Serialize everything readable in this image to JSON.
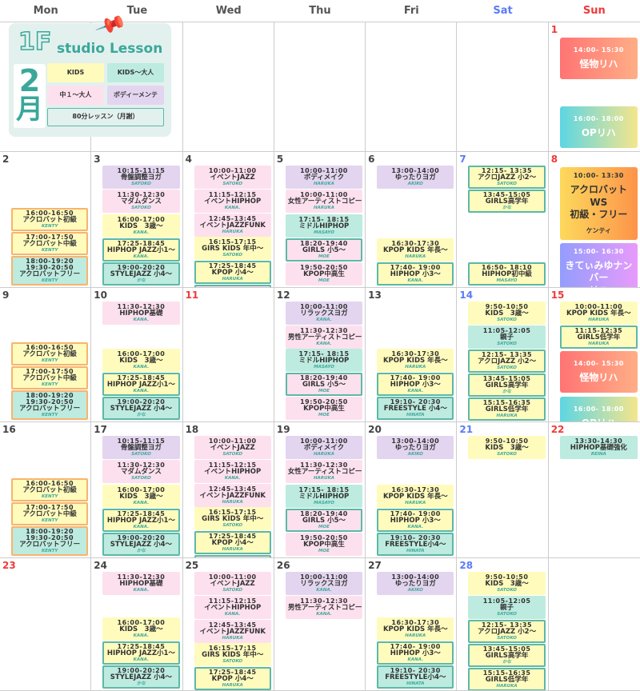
{
  "weekdays": [
    "Mon",
    "Tue",
    "Wed",
    "Thu",
    "Fri",
    "Sat",
    "Sun"
  ],
  "legend": {
    "floor": "1F",
    "title": "studio Lesson",
    "month_num": "2",
    "month_kanji": "月",
    "items": [
      {
        "label": "KIDS",
        "color": "#fffbbc"
      },
      {
        "label": "KIDS〜大人",
        "color": "#bdebdf"
      },
      {
        "label": "中１〜大人",
        "color": "#fde0ee"
      },
      {
        "label": "ボディーメンテ",
        "color": "#e3d5ef"
      }
    ],
    "note": "80分レッスン（月謝）"
  },
  "colors": {
    "kids": "#fffbbc",
    "kids_adult": "#bdebdf",
    "teen_adult": "#fde0ee",
    "body": "#e3d5ef",
    "border": "#5cb8a8",
    "saturday": "#5b7cf5",
    "sunday": "#f03a3a"
  },
  "weeks": [
    [
      {
        "d": ""
      },
      {
        "d": ""
      },
      {
        "d": ""
      },
      {
        "d": ""
      },
      {
        "d": ""
      },
      {
        "d": ""
      },
      {
        "d": "1",
        "red": true,
        "events": [
          {
            "t": "14:00- 15:30",
            "n": "怪物リハ",
            "g": "linear-gradient(90deg,#ff7474,#ffae86)"
          },
          {
            "t": "16:00- 18:00",
            "n": "OPリハ",
            "g": "linear-gradient(90deg,#5dd6e3,#f5e58c)"
          }
        ]
      }
    ],
    [
      {
        "d": "2",
        "events": [
          {
            "t": "16:00-16:50",
            "n": "アクロバット初級",
            "by": "KENTY",
            "c": "y",
            "b": "orange"
          },
          {
            "t": "17:00-17:50",
            "n": "アクロバット中級",
            "by": "KENTY",
            "c": "y",
            "b": "orange"
          },
          {
            "t": "18:00-19:20\n19:30-20:50",
            "n": "アクロバットフリー",
            "by": "KENTY",
            "c": "m",
            "b": "orange"
          }
        ]
      },
      {
        "d": "3",
        "events": [
          {
            "t": "10:15-11:15",
            "n": "骨盤調整ヨガ",
            "by": "SATOKO",
            "c": "v"
          },
          {
            "t": "11:30-12:30",
            "n": "マダムダンス",
            "by": "SATOKO",
            "c": "p"
          },
          {
            "t": "16:00-17:00",
            "n": "KIDS　3歳〜",
            "by": "KANA.",
            "c": "y"
          },
          {
            "t": "17:25-18:45",
            "n": "HIPHOP JAZZ小1〜",
            "by": "KANA.",
            "c": "y",
            "b": "teal"
          },
          {
            "t": "19:00-20:20",
            "n": "STYLEJAZZ 小4〜",
            "by": "かな",
            "c": "m",
            "b": "teal"
          }
        ]
      },
      {
        "d": "4",
        "events": [
          {
            "t": "10:00-11:00",
            "n": "イベントJAZZ",
            "by": "SATOKO",
            "c": "p"
          },
          {
            "t": "11:15-12:15",
            "n": "イベントHIPHOP",
            "by": "KANA.",
            "c": "p"
          },
          {
            "t": "12:45-13:45",
            "n": "イベントJAZZFUNK",
            "by": "HARUKA",
            "c": "p"
          },
          {
            "t": "16:15-17:15",
            "n": "GIRS KIDS 年中〜",
            "by": "SATOKO",
            "c": "y"
          },
          {
            "t": "17:25-18:45",
            "n": "KPOP 小4〜",
            "by": "HARUKA",
            "c": "y",
            "b": "teal"
          },
          {
            "t": "19:05-20:25",
            "n": "JAZZ 小5〜",
            "by": "じゅね",
            "c": "p",
            "b": "teal"
          }
        ]
      },
      {
        "d": "5",
        "events": [
          {
            "t": "10:00-11:00",
            "n": "ボディメイク",
            "by": "HARUKA",
            "c": "v"
          },
          {
            "t": "10:00-11:00",
            "n": "女性アーティストコピー",
            "by": "HARUKA",
            "c": "p"
          },
          {
            "t": "17:15- 18:15",
            "n": "ミドルHIPHOP",
            "by": "MASAYO",
            "c": "m"
          },
          {
            "t": "18:20-19:40",
            "n": "GIRLS 小5〜",
            "by": "MOE",
            "c": "p",
            "b": "teal"
          },
          {
            "t": "19:50-20:50",
            "n": "KPOP中高生",
            "by": "MOE",
            "c": "p"
          }
        ]
      },
      {
        "d": "6",
        "events": [
          {
            "t": "13:00-14:00",
            "n": "ゆったりヨガ",
            "by": "AKIKO",
            "c": "v"
          },
          {
            "t": "16:30-17:30",
            "n": "KPOP KIDS 年長〜",
            "by": "HARUKA",
            "c": "y"
          },
          {
            "t": "17:40- 19:00",
            "n": "HIPHOP 小3〜",
            "by": "KANA.",
            "c": "y",
            "b": "teal"
          }
        ]
      },
      {
        "d": "7",
        "sat": true,
        "events": [
          {
            "t": "12:15- 13:35",
            "n": "アクロJAZZ 小2〜",
            "by": "SATOKO",
            "c": "y",
            "b": "teal"
          },
          {
            "t": "13:45-15:05",
            "n": "GIRLS高学年",
            "by": "かな",
            "c": "y",
            "b": "teal"
          },
          {
            "t": "16:50- 18:10",
            "n": "HIPHOP初中級",
            "by": "MASAYO",
            "c": "y",
            "b": "teal"
          }
        ]
      },
      {
        "d": "8",
        "red": true,
        "events": [
          {
            "t": "10:00- 13:30",
            "n": "アクロバット\nWS\n初級・フリー",
            "by": "ケンティ",
            "g": "linear-gradient(90deg,#fdd95c,#fd944a)",
            "dark": true
          },
          {
            "t": "15:00- 16:30",
            "n": "きてぃみゆナンバー\nリハ",
            "g": "linear-gradient(90deg,#939dfd,#e89bfb)"
          }
        ]
      }
    ],
    [
      {
        "d": "9",
        "events": [
          {
            "t": "16:00-16:50",
            "n": "アクロバット初級",
            "by": "KENTY",
            "c": "y",
            "b": "orange"
          },
          {
            "t": "17:00-17:50",
            "n": "アクロバット中級",
            "by": "KENTY",
            "c": "y",
            "b": "orange"
          },
          {
            "t": "18:00-19:20\n19:30-20:50",
            "n": "アクロバットフリー",
            "by": "KENTY",
            "c": "m",
            "b": "orange"
          }
        ]
      },
      {
        "d": "10",
        "events": [
          {
            "t": "11:30-12:30",
            "n": "HIPHOP基礎",
            "by": "KANA.",
            "c": "p"
          },
          {
            "t": "16:00-17:00",
            "n": "KIDS　3歳〜",
            "by": "KANA.",
            "c": "y"
          },
          {
            "t": "17:25-18:45",
            "n": "HIPHOP JAZZ小1〜",
            "by": "KANA.",
            "c": "y",
            "b": "teal"
          },
          {
            "t": "19:00-20:20",
            "n": "STYLEJAZZ 小4〜",
            "by": "かな",
            "c": "m",
            "b": "teal"
          }
        ]
      },
      {
        "d": "11",
        "red": true,
        "events": []
      },
      {
        "d": "12",
        "events": [
          {
            "t": "10:00-11:00",
            "n": "リラックスヨガ",
            "by": "KANA.",
            "c": "v"
          },
          {
            "t": "11:30-12:30",
            "n": "男性アーティストコピー",
            "by": "KANA.",
            "c": "p"
          },
          {
            "t": "17:15- 18:15",
            "n": "ミドルHIPHOP",
            "by": "MASAYO",
            "c": "m"
          },
          {
            "t": "18:20-19:40",
            "n": "GIRLS 小5〜",
            "by": "MOE",
            "c": "p",
            "b": "teal"
          },
          {
            "t": "19:50-20:50",
            "n": "KPOP中高生",
            "by": "MOE",
            "c": "p"
          }
        ]
      },
      {
        "d": "13",
        "events": [
          {
            "t": "16:30-17:30",
            "n": "KPOP KIDS 年長〜",
            "by": "HARUKA",
            "c": "y"
          },
          {
            "t": "17:40- 19:00",
            "n": "HIPHOP 小3〜",
            "by": "KANA.",
            "c": "y",
            "b": "teal"
          },
          {
            "t": "19:10- 20:30",
            "n": "FREESTYLE 小4〜",
            "by": "HINATA",
            "c": "m",
            "b": "teal"
          }
        ]
      },
      {
        "d": "14",
        "sat": true,
        "events": [
          {
            "t": "9:50-10:50",
            "n": "KIDS　3歳〜",
            "by": "SATOKO",
            "c": "y"
          },
          {
            "t": "11:05-12:05",
            "n": "親子",
            "by": "SATOKO",
            "c": "m"
          },
          {
            "t": "12:15- 13:35",
            "n": "アクロJAZZ 小2〜",
            "by": "SATOKO",
            "c": "y",
            "b": "teal"
          },
          {
            "t": "13:45-15:05",
            "n": "GIRLS高学年",
            "by": "かな",
            "c": "y",
            "b": "teal"
          },
          {
            "t": "15:15-16:35",
            "n": "GIRLS低学年",
            "by": "HARUKA",
            "c": "y",
            "b": "teal"
          },
          {
            "t": "16:50- 18:10",
            "n": "HIPHOP初中級",
            "by": "MASAYO",
            "c": "y",
            "b": "teal"
          }
        ]
      },
      {
        "d": "15",
        "red": true,
        "events": [
          {
            "t": "10:00-11:00",
            "n": "KPOP KIDS 年長〜",
            "by": "HARUKA",
            "c": "y"
          },
          {
            "t": "11:15-12:35",
            "n": "GIRLS低学年",
            "by": "HARUKA",
            "c": "y",
            "b": "teal"
          },
          {
            "t": "14:00- 15:30",
            "n": "怪物リハ",
            "g": "linear-gradient(90deg,#ff7474,#ffae86)"
          },
          {
            "t": "16:00- 18:00",
            "n": "OPリハ",
            "g": "linear-gradient(90deg,#5dd6e3,#f5e58c)"
          }
        ]
      }
    ],
    [
      {
        "d": "16",
        "events": [
          {
            "t": "16:00-16:50",
            "n": "アクロバット初級",
            "by": "KENTY",
            "c": "y",
            "b": "orange"
          },
          {
            "t": "17:00-17:50",
            "n": "アクロバット中級",
            "by": "KENTY",
            "c": "y",
            "b": "orange"
          },
          {
            "t": "18:00-19:20\n19:30-20:50",
            "n": "アクロバットフリー",
            "by": "KENTY",
            "c": "m",
            "b": "orange"
          }
        ]
      },
      {
        "d": "17",
        "events": [
          {
            "t": "10:15-11:15",
            "n": "骨盤調整ヨガ",
            "by": "SATOKO",
            "c": "v"
          },
          {
            "t": "11:30-12:30",
            "n": "マダムダンス",
            "by": "SATOKO",
            "c": "p"
          },
          {
            "t": "16:00-17:00",
            "n": "KIDS　3歳〜",
            "by": "KANA.",
            "c": "y"
          },
          {
            "t": "17:25-18:45",
            "n": "HIPHOP JAZZ小1〜",
            "by": "KANA.",
            "c": "y",
            "b": "teal"
          },
          {
            "t": "19:00-20:20",
            "n": "STYLEJAZZ 小4〜",
            "by": "かな",
            "c": "m",
            "b": "teal"
          }
        ]
      },
      {
        "d": "18",
        "events": [
          {
            "t": "10:00-11:00",
            "n": "イベントJAZZ",
            "by": "SATOKO",
            "c": "p"
          },
          {
            "t": "11:15-12:15",
            "n": "イベントHIPHOP",
            "by": "KANA.",
            "c": "p"
          },
          {
            "t": "12:45-13:45",
            "n": "イベントJAZZFUNK",
            "by": "HARUKA",
            "c": "p"
          },
          {
            "t": "16:15-17:15",
            "n": "GIRS KIDS 年中〜",
            "by": "SATOKO",
            "c": "y"
          },
          {
            "t": "17:25-18:45",
            "n": "KPOP 小4〜",
            "by": "HARUKA",
            "c": "y",
            "b": "teal"
          },
          {
            "t": "19:05-20:25",
            "n": "JAZZ 小5〜",
            "by": "じゅね",
            "c": "p",
            "b": "teal"
          }
        ]
      },
      {
        "d": "19",
        "events": [
          {
            "t": "10:00-11:00",
            "n": "ボディメイク",
            "by": "HARUKA",
            "c": "v"
          },
          {
            "t": "11:30-12:30",
            "n": "女性アーティストコピー",
            "by": "HARUKA",
            "c": "p"
          },
          {
            "t": "17:15- 18:15",
            "n": "ミドルHIPHOP",
            "by": "MASAYO",
            "c": "m"
          },
          {
            "t": "18:20-19:40",
            "n": "GIRLS 小5〜",
            "by": "MOE",
            "c": "p",
            "b": "teal"
          },
          {
            "t": "19:50-20:50",
            "n": "KPOP中高生",
            "by": "MOE",
            "c": "p"
          }
        ]
      },
      {
        "d": "20",
        "events": [
          {
            "t": "13:00-14:00",
            "n": "ゆったりヨガ",
            "by": "AKIKO",
            "c": "v"
          },
          {
            "t": "16:30-17:30",
            "n": "KPOP KIDS 年長〜",
            "by": "HARUKA",
            "c": "y"
          },
          {
            "t": "17:40- 19:00",
            "n": "HIPHOP 小3〜",
            "by": "KANA.",
            "c": "y",
            "b": "teal"
          },
          {
            "t": "19:10- 20:30",
            "n": "FREESTYLE小4〜",
            "by": "HINATA",
            "c": "m",
            "b": "teal"
          }
        ]
      },
      {
        "d": "21",
        "sat": true,
        "events": [
          {
            "t": "9:50-10:50",
            "n": "KIDS　3歳〜",
            "by": "SATOKO",
            "c": "y"
          }
        ]
      },
      {
        "d": "22",
        "red": true,
        "events": [
          {
            "t": "13:30-14:30",
            "n": "HIPHOP基礎強化",
            "by": "REINA",
            "c": "m"
          }
        ]
      }
    ],
    [
      {
        "d": "23",
        "red": true,
        "events": []
      },
      {
        "d": "24",
        "events": [
          {
            "t": "11:30-12:30",
            "n": "HIPHOP基礎",
            "by": "KANA.",
            "c": "p"
          },
          {
            "t": "16:00-17:00",
            "n": "KIDS　3歳〜",
            "by": "KANA.",
            "c": "y"
          },
          {
            "t": "17:25-18:45",
            "n": "HIPHOP JAZZ小1〜",
            "by": "KANA.",
            "c": "y",
            "b": "teal"
          },
          {
            "t": "19:00-20:20",
            "n": "STYLEJAZZ 小4〜",
            "by": "かな",
            "c": "m",
            "b": "teal"
          }
        ]
      },
      {
        "d": "25",
        "events": [
          {
            "t": "10:00-11:00",
            "n": "イベントJAZZ",
            "by": "SATOKO",
            "c": "p"
          },
          {
            "t": "11:15-12:15",
            "n": "イベントHIPHOP",
            "by": "KANA.",
            "c": "p"
          },
          {
            "t": "12:45-13:45",
            "n": "イベントJAZZFUNK",
            "by": "HARUKA",
            "c": "p"
          },
          {
            "t": "16:15-17:15",
            "n": "GIRS KIDS 年中〜",
            "by": "SATOKO",
            "c": "y"
          },
          {
            "t": "17:25-18:45",
            "n": "KPOP 小4〜",
            "by": "HARUKA",
            "c": "y",
            "b": "teal"
          },
          {
            "t": "19:05-20:25",
            "n": "JAZZ 小5〜",
            "by": "じゅね",
            "c": "p",
            "b": "teal"
          }
        ]
      },
      {
        "d": "26",
        "events": [
          {
            "t": "10:00-11:00",
            "n": "リラックスヨガ",
            "by": "KANA.",
            "c": "v"
          },
          {
            "t": "11:30-12:30",
            "n": "男性アーティストコピー",
            "by": "KANA.",
            "c": "p"
          }
        ]
      },
      {
        "d": "27",
        "events": [
          {
            "t": "13:00-14:00",
            "n": "ゆったりヨガ",
            "by": "AKIKO",
            "c": "v"
          },
          {
            "t": "16:30-17:30",
            "n": "KPOP KIDS 年長〜",
            "by": "HARUKA",
            "c": "y"
          },
          {
            "t": "17:40- 19:00",
            "n": "HIPHOP 小3〜",
            "by": "KANA.",
            "c": "y",
            "b": "teal"
          },
          {
            "t": "19:10- 20:30",
            "n": "FREESTYLE小4〜",
            "by": "HINATA",
            "c": "m",
            "b": "teal"
          }
        ]
      },
      {
        "d": "28",
        "sat": true,
        "events": [
          {
            "t": "9:50-10:50",
            "n": "KIDS　3歳〜",
            "by": "SATOKO",
            "c": "y"
          },
          {
            "t": "11:05-12:05",
            "n": "親子",
            "by": "SATOKO",
            "c": "m"
          },
          {
            "t": "12:15- 13:35",
            "n": "アクロJAZZ 小2〜",
            "by": "SATOKO",
            "c": "y",
            "b": "teal"
          },
          {
            "t": "13:45-15:05",
            "n": "GIRLS高学年",
            "by": "かな",
            "c": "y",
            "b": "teal"
          },
          {
            "t": "15:15-16:35",
            "n": "GIRLS低学年",
            "by": "HARUKA",
            "c": "y",
            "b": "teal"
          },
          {
            "t": "16:50- 18:10",
            "n": "HIPHOP初中級",
            "by": "MASAYO",
            "c": "y",
            "b": "teal"
          }
        ]
      },
      {
        "d": ""
      }
    ]
  ]
}
